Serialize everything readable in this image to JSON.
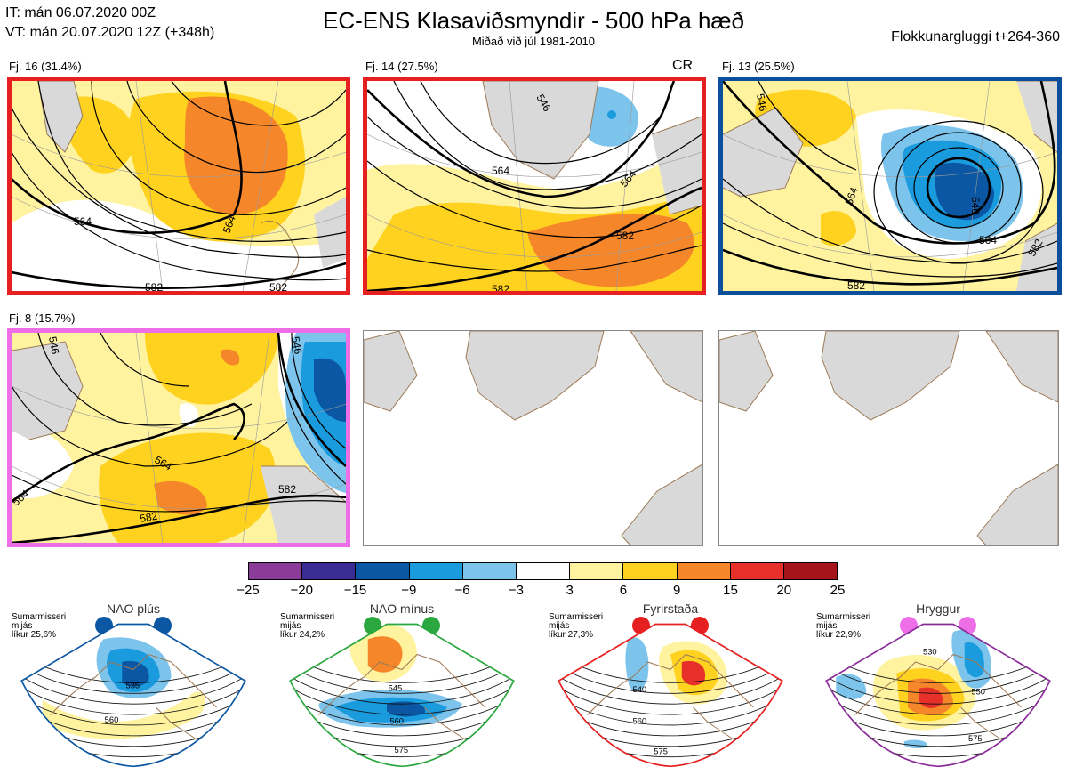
{
  "header": {
    "it_line": "IT: mán 06.07.2020 00Z",
    "vt_line": "VT: mán 20.07.2020 12Z  (+348h)",
    "title": "EC-ENS Klasaviðsmyndir - 500 hPa hæð",
    "subtitle": "Miðað við júl 1981-2010",
    "window": "Flokkunargluggi t+264-360"
  },
  "clusters": [
    {
      "label": "Fj. 16 (31.4%)",
      "border_color": "#e62020",
      "contours": [
        "564",
        "564",
        "582",
        "582"
      ]
    },
    {
      "label": "Fj. 14 (27.5%)",
      "border_color": "#e62020",
      "tag": "CR",
      "contours": [
        "546",
        "564",
        "564",
        "582",
        "582"
      ]
    },
    {
      "label": "Fj. 13 (25.5%)",
      "border_color": "#0b4f9c",
      "contours": [
        "546",
        "564",
        "540",
        "564",
        "582",
        "582"
      ]
    },
    {
      "label": "Fj. 8 (15.7%)",
      "border_color": "#ee6ee8",
      "contours": [
        "546",
        "564",
        "564",
        "582",
        "582",
        "546"
      ]
    }
  ],
  "colorbar": {
    "ticks": [
      "−25",
      "−20",
      "−15",
      "−9",
      "−6",
      "−3",
      "3",
      "6",
      "9",
      "15",
      "20",
      "25"
    ],
    "colors": [
      "#8a3c98",
      "#3b2c93",
      "#0b57a3",
      "#1a9bde",
      "#7dc4ec",
      "#ffffff",
      "#fff3a0",
      "#ffd21f",
      "#f5862a",
      "#e8302a",
      "#a5141b"
    ]
  },
  "regimes": [
    {
      "name": "NAO plús",
      "desc": [
        "Sumarmisseri",
        "mijás",
        "líkur 25,6%"
      ],
      "color": "#0b57a3",
      "dot_color": "#0b57a3",
      "contours": [
        "535",
        "560"
      ]
    },
    {
      "name": "NAO mínus",
      "desc": [
        "Sumarmisseri",
        "mijás",
        "líkur 24,2%"
      ],
      "color": "#2aa83f",
      "dot_color": "#2aa83f",
      "contours": [
        "545",
        "560",
        "575"
      ]
    },
    {
      "name": "Fyrirstaða",
      "desc": [
        "Sumarmisseri",
        "mijás",
        "líkur 27,3%"
      ],
      "color": "#e62020",
      "dot_color": "#e62020",
      "contours": [
        "540",
        "560",
        "575"
      ]
    },
    {
      "name": "Hryggur",
      "desc": [
        "Sumarmisseri",
        "mijás",
        "líkur 22,9%"
      ],
      "color": "#8a2c98",
      "dot_color": "#ee6ee8",
      "contours": [
        "530",
        "550",
        "575"
      ]
    }
  ]
}
